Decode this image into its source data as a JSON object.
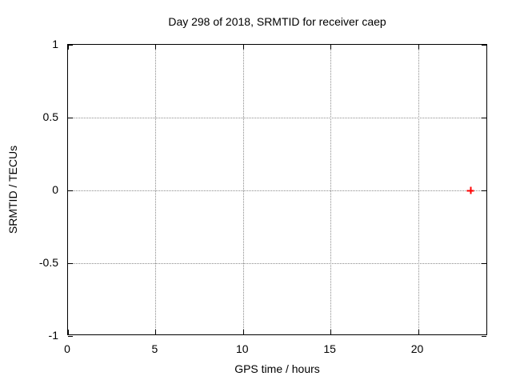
{
  "chart_data": {
    "type": "scatter",
    "title": "Day 298 of 2018, SRMTID for receiver caep",
    "xlabel": "GPS time / hours",
    "ylabel": "SRMTID / TECUs",
    "xlim": [
      0,
      24
    ],
    "ylim": [
      -1,
      1
    ],
    "xticks": [
      0,
      5,
      10,
      15,
      20
    ],
    "yticks": [
      1,
      0.5,
      0,
      -0.5,
      -1
    ],
    "grid": true,
    "legend": "none",
    "grid_color": "#8c8c8c",
    "axis_color": "#000000",
    "background_color": "#ffffff",
    "series": [
      {
        "name": "SRMTID",
        "marker": "plus",
        "color": "#ff0000",
        "points": [
          {
            "x": 23,
            "y": 0
          }
        ]
      }
    ]
  }
}
